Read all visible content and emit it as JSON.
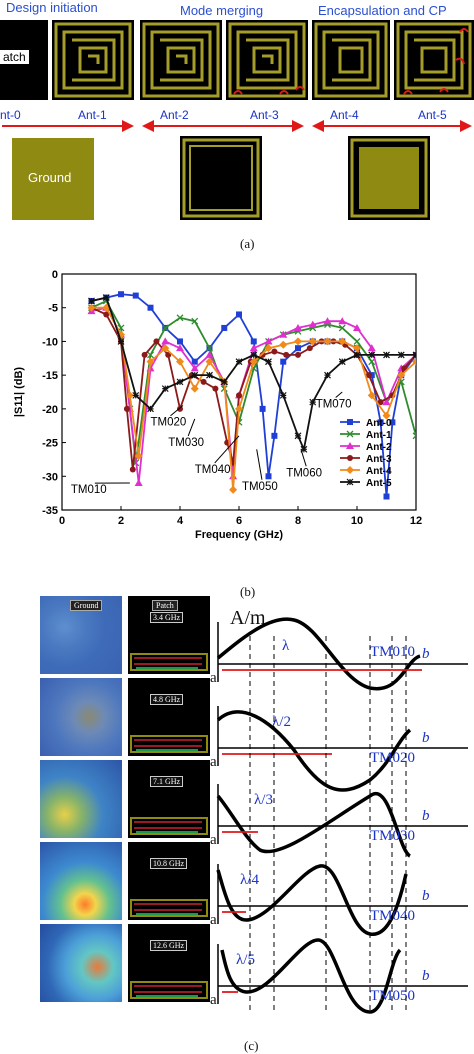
{
  "section_a": {
    "headers": [
      "Design initiation",
      "Mode merging",
      "Encapsulation and CP"
    ],
    "patch_label": "atch",
    "ground_label": "Ground",
    "ant_labels": [
      "nt-0",
      "Ant-1",
      "Ant-2",
      "Ant-3",
      "Ant-4",
      "Ant-5"
    ],
    "caption": "(a)"
  },
  "section_b": {
    "caption": "(b)",
    "mode_labels": [
      "TM010",
      "TM020",
      "TM030",
      "TM040",
      "TM050",
      "TM060",
      "TM070"
    ]
  },
  "section_c": {
    "caption": "(c)",
    "ground_label": "Ground",
    "patch_label": "Patch",
    "freqs": [
      "3.4 GHz",
      "4.8 GHz",
      "7.1 GHz",
      "10.8 GHz",
      "12.6 GHz"
    ],
    "unit": "A/m",
    "a_label": "a",
    "b_label": "b",
    "modes": [
      "TM010",
      "TM020",
      "TM030",
      "TM040",
      "TM050"
    ],
    "lambdas": [
      "λ",
      "λ/2",
      "λ/3",
      "λ/4",
      "λ/5"
    ]
  },
  "chart_data": {
    "type": "line",
    "xlabel": "Frequency (GHz)",
    "ylabel": "|S11| (dB)",
    "xlim": [
      0,
      12
    ],
    "ylim": [
      -35,
      0
    ],
    "xticks": [
      0,
      2,
      4,
      6,
      8,
      10,
      12
    ],
    "yticks": [
      0,
      -5,
      -10,
      -15,
      -20,
      -25,
      -30,
      -35
    ],
    "legend_position": "right",
    "series": [
      {
        "name": "Ant-0",
        "color": "#1f3fd6",
        "marker": "square",
        "x": [
          1,
          1.5,
          2,
          2.5,
          3,
          3.5,
          4,
          4.5,
          5,
          5.5,
          6,
          6.5,
          6.8,
          7,
          7.2,
          7.5,
          8,
          8.5,
          9,
          9.5,
          10,
          10.5,
          10.8,
          11,
          11.2,
          11.5,
          12
        ],
        "y": [
          -4,
          -3.5,
          -3,
          -3.2,
          -5,
          -8,
          -10,
          -13,
          -11,
          -8,
          -6,
          -10,
          -20,
          -30,
          -24,
          -13,
          -11,
          -10,
          -10,
          -10,
          -11,
          -15,
          -22,
          -33,
          -22,
          -15,
          -12
        ]
      },
      {
        "name": "Ant-1",
        "color": "#2e8b2e",
        "marker": "x",
        "x": [
          1,
          1.5,
          2,
          2.3,
          2.5,
          3,
          3.5,
          4,
          4.5,
          5,
          5.5,
          6,
          6.5,
          7,
          7.5,
          8,
          8.5,
          9,
          9.5,
          10,
          10.5,
          11,
          11.5,
          12
        ],
        "y": [
          -5,
          -4,
          -8,
          -20,
          -28,
          -12,
          -8,
          -6.5,
          -7,
          -11,
          -17,
          -22,
          -14,
          -10,
          -9,
          -8.5,
          -8,
          -7.5,
          -8,
          -10,
          -13,
          -19,
          -16,
          -24
        ]
      },
      {
        "name": "Ant-2",
        "color": "#e02fd0",
        "marker": "triangle",
        "x": [
          1,
          1.5,
          2,
          2.3,
          2.6,
          3,
          3.5,
          4,
          4.5,
          5,
          5.5,
          5.8,
          6,
          6.5,
          7,
          7.5,
          8,
          8.5,
          9,
          9.5,
          10,
          10.5,
          11,
          11.5,
          12
        ],
        "y": [
          -5.5,
          -5,
          -9,
          -20,
          -31,
          -14,
          -10,
          -11,
          -14,
          -12,
          -16,
          -30,
          -18,
          -11,
          -10,
          -9,
          -8,
          -7.5,
          -7,
          -7,
          -8,
          -11,
          -19,
          -14,
          -12
        ]
      },
      {
        "name": "Ant-3",
        "color": "#8b1a1a",
        "marker": "circle",
        "x": [
          1,
          1.5,
          2,
          2.2,
          2.4,
          2.8,
          3.2,
          3.6,
          4,
          4.4,
          4.8,
          5.2,
          5.6,
          5.8,
          6,
          6.4,
          6.8,
          7.2,
          7.6,
          8,
          8.4,
          8.8,
          9.2,
          9.6,
          10,
          10.4,
          10.8,
          11.2,
          11.6,
          12
        ],
        "y": [
          -5,
          -6,
          -10,
          -20,
          -29,
          -12,
          -10,
          -12,
          -20,
          -15,
          -16,
          -17,
          -25,
          -28,
          -18,
          -13,
          -12,
          -11.5,
          -12,
          -12,
          -11,
          -10,
          -10,
          -10.5,
          -12,
          -15,
          -19,
          -18,
          -14,
          -12
        ]
      },
      {
        "name": "Ant-4",
        "color": "#f08a1a",
        "marker": "diamond",
        "x": [
          1,
          1.5,
          2,
          2.3,
          2.6,
          3,
          3.5,
          4,
          4.5,
          5,
          5.5,
          5.8,
          6,
          6.5,
          7,
          7.5,
          8,
          8.5,
          9,
          9.5,
          10,
          10.5,
          11,
          11.5,
          12
        ],
        "y": [
          -5,
          -5,
          -9,
          -18,
          -27,
          -13,
          -11,
          -13,
          -17,
          -13,
          -16,
          -32,
          -20,
          -13,
          -11,
          -10.5,
          -10,
          -10,
          -10,
          -10,
          -11,
          -18,
          -21,
          -15,
          -13
        ]
      },
      {
        "name": "Ant-5",
        "color": "#111111",
        "marker": "star",
        "x": [
          1,
          1.5,
          2,
          2.5,
          3,
          3.5,
          4,
          4.5,
          5,
          5.5,
          6,
          6.5,
          7,
          7.5,
          8,
          8.2,
          8.5,
          9,
          9.5,
          10,
          10.5,
          11,
          11.5,
          12
        ],
        "y": [
          -4,
          -3.5,
          -10,
          -18,
          -20,
          -17,
          -16,
          -15,
          -15,
          -16,
          -13,
          -12,
          -13,
          -18,
          -24,
          -26,
          -19,
          -15,
          -13,
          -12,
          -12,
          -12,
          -12,
          -12
        ]
      }
    ]
  }
}
